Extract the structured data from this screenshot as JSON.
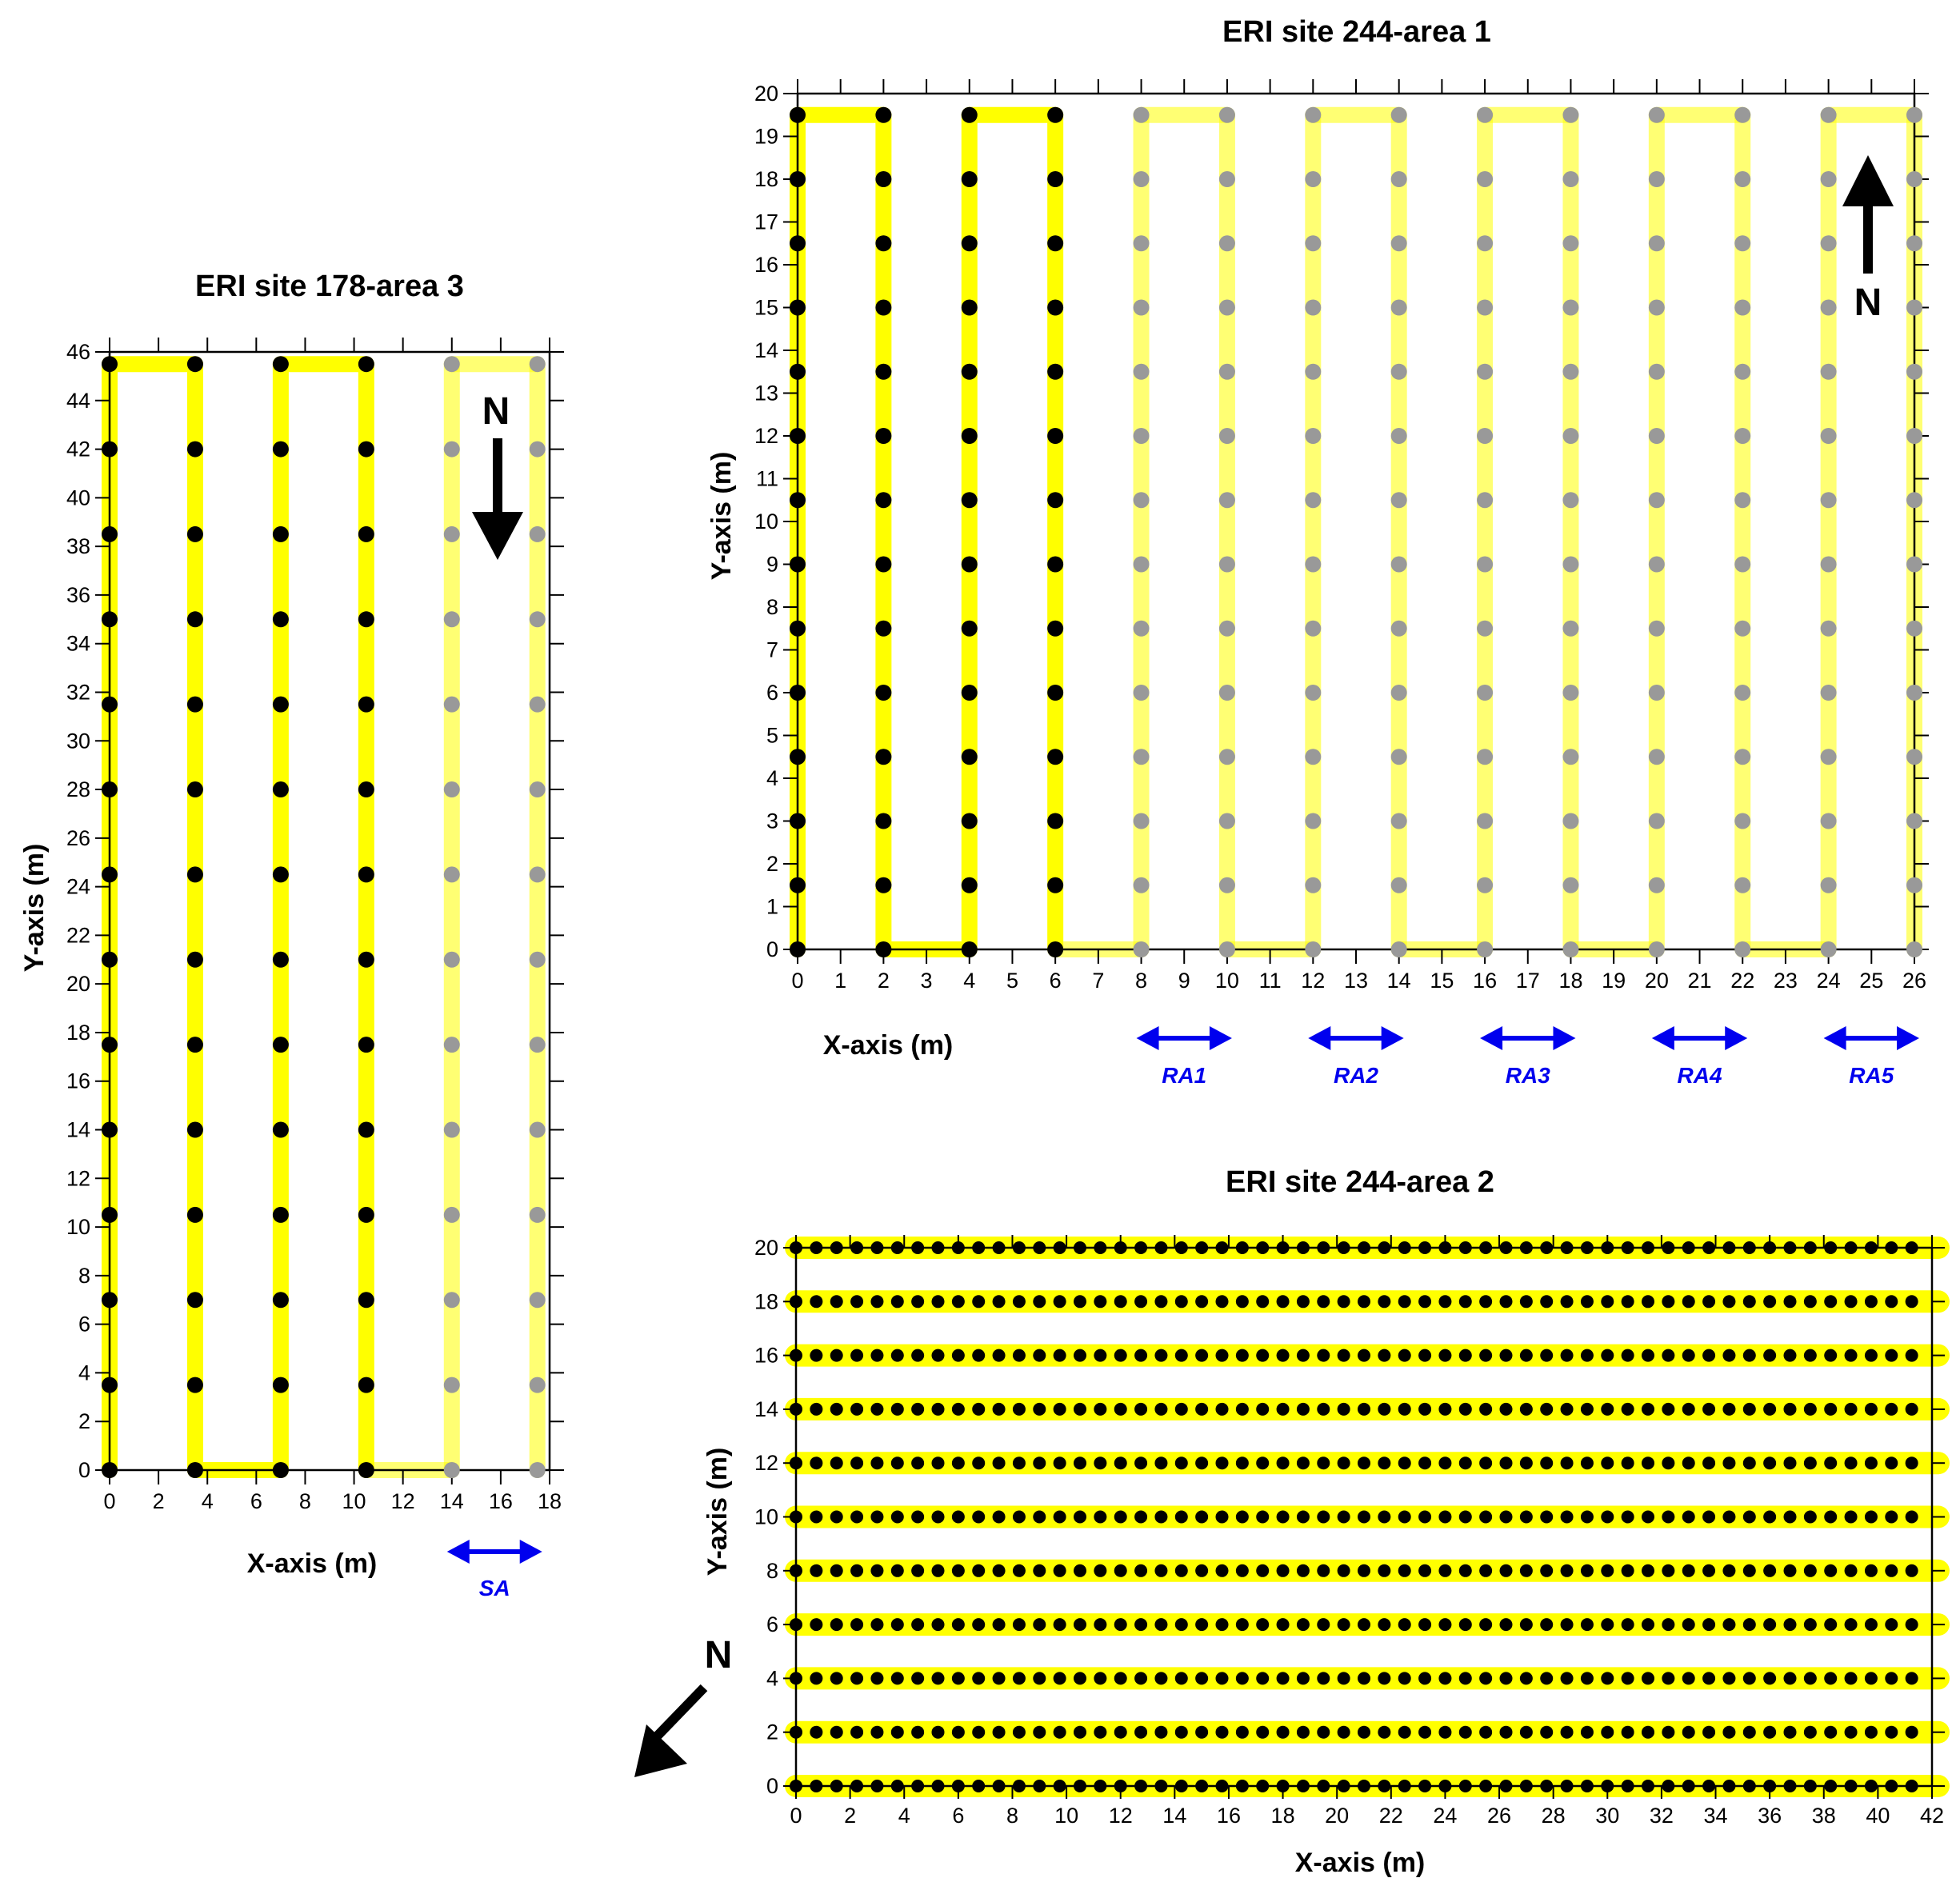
{
  "chart_data": [
    {
      "id": "p178",
      "type": "scatter",
      "title": "ERI site 178-area 3",
      "xlabel": "X-axis (m)",
      "ylabel": "Y-axis (m)",
      "xlim": [
        0,
        18
      ],
      "ylim": [
        0,
        46
      ],
      "xticks": [
        0,
        2,
        4,
        6,
        8,
        10,
        12,
        14,
        16,
        18
      ],
      "yticks": [
        0,
        2,
        4,
        6,
        8,
        10,
        12,
        14,
        16,
        18,
        20,
        22,
        24,
        26,
        28,
        30,
        32,
        34,
        36,
        38,
        40,
        42,
        44,
        46
      ],
      "series": [
        {
          "color": "#000000",
          "columns_x": [
            0,
            3.5,
            7,
            10.5
          ],
          "y": [
            0,
            3.5,
            7,
            10.5,
            14,
            17.5,
            21,
            24.5,
            28,
            31.5,
            35,
            38.5,
            42,
            45.5
          ]
        },
        {
          "color": "#999999",
          "columns_x": [
            14,
            17.5
          ],
          "y": [
            0,
            3.5,
            7,
            10.5,
            14,
            17.5,
            21,
            24.5,
            28,
            31.5,
            35,
            38.5,
            42,
            45.5
          ]
        }
      ],
      "profile_path": {
        "color": "#ffff00",
        "points": [
          [
            0,
            0
          ],
          [
            0,
            45.5
          ],
          [
            3.5,
            45.5
          ],
          [
            3.5,
            0
          ],
          [
            7,
            0
          ],
          [
            7,
            45.5
          ],
          [
            10.5,
            45.5
          ],
          [
            10.5,
            0
          ],
          [
            14,
            0
          ],
          [
            14,
            45.5
          ],
          [
            17.5,
            45.5
          ],
          [
            17.5,
            0
          ]
        ],
        "bright_segments": 7
      },
      "north_label": "N",
      "north_direction": "south",
      "annotations": [
        {
          "label": "SA",
          "x_from": 14,
          "x_to": 17.5
        }
      ]
    },
    {
      "id": "p244a1",
      "type": "scatter",
      "title": "ERI site 244-area 1",
      "xlabel": "X-axis (m)",
      "ylabel": "Y-axis (m)",
      "xlim": [
        0,
        26
      ],
      "ylim": [
        0,
        20
      ],
      "xticks": [
        0,
        1,
        2,
        3,
        4,
        5,
        6,
        7,
        8,
        9,
        10,
        11,
        12,
        13,
        14,
        15,
        16,
        17,
        18,
        19,
        20,
        21,
        22,
        23,
        24,
        25,
        26
      ],
      "yticks": [
        0,
        1,
        2,
        3,
        4,
        5,
        6,
        7,
        8,
        9,
        10,
        11,
        12,
        13,
        14,
        15,
        16,
        17,
        18,
        19,
        20
      ],
      "series": [
        {
          "color": "#000000",
          "columns_x": [
            0,
            2,
            4,
            6
          ],
          "y": [
            0,
            1.5,
            3,
            4.5,
            6,
            7.5,
            9,
            10.5,
            12,
            13.5,
            15,
            16.5,
            18,
            19.5
          ]
        },
        {
          "color": "#999999",
          "columns_x": [
            8,
            10,
            12,
            14,
            16,
            18,
            20,
            22,
            24,
            26
          ],
          "y": [
            0,
            1.5,
            3,
            4.5,
            6,
            7.5,
            9,
            10.5,
            12,
            13.5,
            15,
            16.5,
            18,
            19.5
          ]
        }
      ],
      "profile_path": {
        "color": "#ffff00",
        "points": [
          [
            0,
            0
          ],
          [
            0,
            19.5
          ],
          [
            2,
            19.5
          ],
          [
            2,
            0
          ],
          [
            4,
            0
          ],
          [
            4,
            19.5
          ],
          [
            6,
            19.5
          ],
          [
            6,
            0
          ],
          [
            8,
            0
          ],
          [
            8,
            19.5
          ],
          [
            10,
            19.5
          ],
          [
            10,
            0
          ],
          [
            12,
            0
          ],
          [
            12,
            19.5
          ],
          [
            14,
            19.5
          ],
          [
            14,
            0
          ],
          [
            16,
            0
          ],
          [
            16,
            19.5
          ],
          [
            18,
            19.5
          ],
          [
            18,
            0
          ],
          [
            20,
            0
          ],
          [
            20,
            19.5
          ],
          [
            22,
            19.5
          ],
          [
            22,
            0
          ],
          [
            24,
            0
          ],
          [
            24,
            19.5
          ],
          [
            26,
            19.5
          ],
          [
            26,
            0
          ]
        ],
        "bright_segments": 7
      },
      "north_label": "N",
      "north_direction": "north",
      "annotations": [
        {
          "label": "RA1",
          "x_from": 8,
          "x_to": 10
        },
        {
          "label": "RA2",
          "x_from": 12,
          "x_to": 14
        },
        {
          "label": "RA3",
          "x_from": 16,
          "x_to": 18
        },
        {
          "label": "RA4",
          "x_from": 20,
          "x_to": 22
        },
        {
          "label": "RA5",
          "x_from": 24,
          "x_to": 26
        }
      ]
    },
    {
      "id": "p244a2",
      "type": "scatter",
      "title": "ERI site 244-area 2",
      "xlabel": "X-axis (m)",
      "ylabel": "Y-axis (m)",
      "xlim": [
        0,
        42
      ],
      "ylim": [
        0,
        20
      ],
      "xticks": [
        0,
        2,
        4,
        6,
        8,
        10,
        12,
        14,
        16,
        18,
        20,
        22,
        24,
        26,
        28,
        30,
        32,
        34,
        36,
        38,
        40,
        42
      ],
      "yticks": [
        0,
        2,
        4,
        6,
        8,
        10,
        12,
        14,
        16,
        18,
        20
      ],
      "series": [
        {
          "color": "#000000",
          "rows_y": [
            0,
            2,
            4,
            6,
            8,
            10,
            12,
            14,
            16,
            18,
            20
          ],
          "x_start": 0,
          "x_step": 0.75,
          "x_end": 41.25
        }
      ],
      "profile_lines": {
        "color": "#ffff00",
        "rows_y": [
          0,
          2,
          4,
          6,
          8,
          10,
          12,
          14,
          16,
          18,
          20
        ],
        "x_from": 0,
        "x_to": 42
      },
      "north_label": "N",
      "north_direction": "southwest"
    }
  ]
}
